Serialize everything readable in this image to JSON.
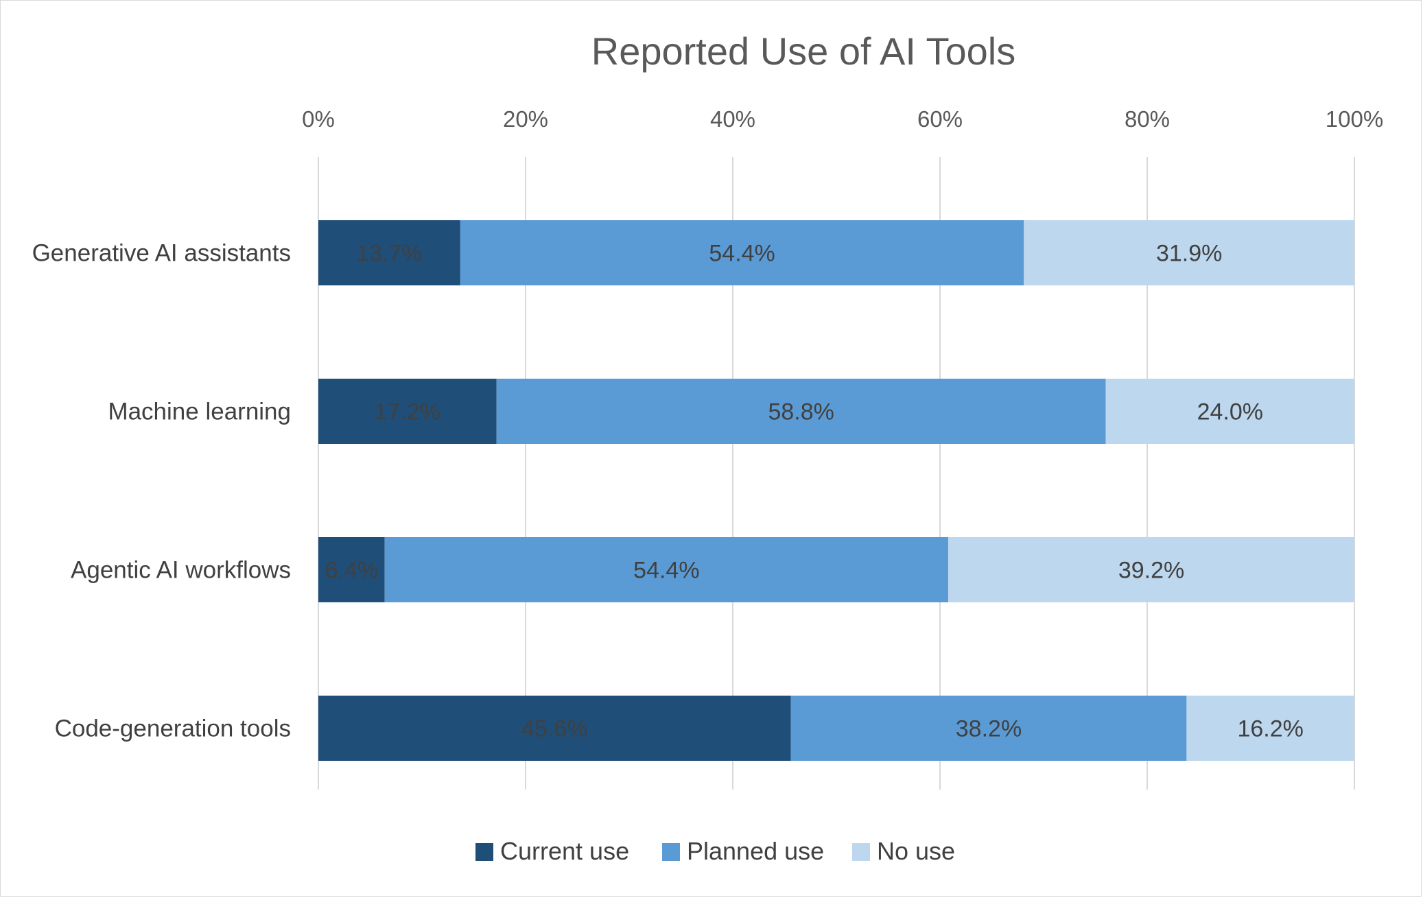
{
  "chart_data": {
    "type": "bar",
    "orientation": "horizontal",
    "stacked": "percent",
    "title": "Reported Use of AI Tools",
    "categories": [
      "Generative AI assistants",
      "Machine learning",
      "Agentic AI workflows",
      "Code-generation tools"
    ],
    "series": [
      {
        "name": "Current use",
        "color": "#1f4e79",
        "values": [
          13.7,
          17.2,
          6.4,
          45.6
        ],
        "labels": [
          "13.7%",
          "17.2%",
          "6.4%",
          "45.6%"
        ]
      },
      {
        "name": "Planned use",
        "color": "#5b9bd5",
        "values": [
          54.4,
          58.8,
          54.4,
          38.2
        ],
        "labels": [
          "54.4%",
          "58.8%",
          "54.4%",
          "38.2%"
        ]
      },
      {
        "name": "No use",
        "color": "#bdd7ee",
        "values": [
          31.9,
          24.0,
          39.2,
          16.2
        ],
        "labels": [
          "31.9%",
          "24.0%",
          "39.2%",
          "16.2%"
        ]
      }
    ],
    "xlim": [
      0,
      100
    ],
    "x_ticks": [
      0,
      20,
      40,
      60,
      80,
      100
    ],
    "x_tick_labels": [
      "0%",
      "20%",
      "40%",
      "60%",
      "80%",
      "100%"
    ],
    "x_axis_position": "top",
    "grid": true,
    "legend_position": "bottom"
  }
}
